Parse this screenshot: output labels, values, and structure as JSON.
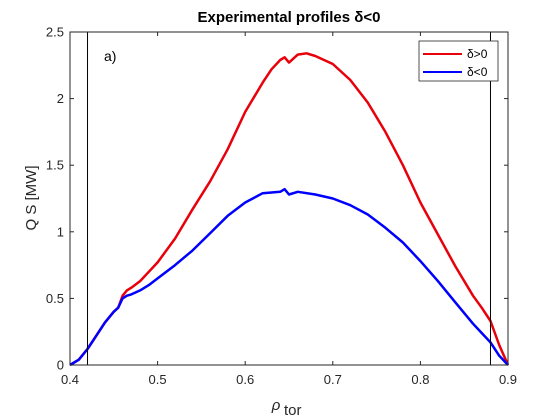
{
  "chart_data": {
    "type": "line",
    "title": "Experimental profiles δ<0",
    "xlabel_main": "ρ",
    "xlabel_sub": "tor",
    "ylabel": "Q S [MW]",
    "xlim": [
      0.4,
      0.9
    ],
    "ylim": [
      0,
      2.5
    ],
    "x_ticks": [
      0.4,
      0.5,
      0.6,
      0.7,
      0.8,
      0.9
    ],
    "x_tick_labels": [
      "0.4",
      "0.5",
      "0.6",
      "0.7",
      "0.8",
      "0.9"
    ],
    "y_ticks": [
      0,
      0.5,
      1,
      1.5,
      2,
      2.5
    ],
    "y_tick_labels": [
      "0",
      "0.5",
      "1",
      "1.5",
      "2",
      "2.5"
    ],
    "annotation": "a)",
    "vertical_lines_x": [
      0.42,
      0.88
    ],
    "grid": false,
    "legend_position": "top-right",
    "series": [
      {
        "name": "δ>0",
        "color": "#e8000b",
        "x": [
          0.4,
          0.41,
          0.42,
          0.43,
          0.44,
          0.45,
          0.455,
          0.46,
          0.465,
          0.47,
          0.48,
          0.49,
          0.5,
          0.52,
          0.54,
          0.56,
          0.58,
          0.6,
          0.62,
          0.63,
          0.64,
          0.645,
          0.65,
          0.66,
          0.67,
          0.68,
          0.7,
          0.72,
          0.74,
          0.76,
          0.78,
          0.8,
          0.82,
          0.84,
          0.86,
          0.87,
          0.88,
          0.89,
          0.9
        ],
        "y": [
          0.0,
          0.04,
          0.12,
          0.22,
          0.32,
          0.4,
          0.43,
          0.52,
          0.56,
          0.58,
          0.63,
          0.7,
          0.77,
          0.95,
          1.17,
          1.38,
          1.62,
          1.9,
          2.12,
          2.22,
          2.29,
          2.31,
          2.27,
          2.33,
          2.34,
          2.32,
          2.26,
          2.14,
          1.97,
          1.75,
          1.5,
          1.22,
          0.98,
          0.74,
          0.52,
          0.43,
          0.33,
          0.15,
          0.0
        ]
      },
      {
        "name": "δ<0",
        "color": "#0000ff",
        "x": [
          0.4,
          0.41,
          0.42,
          0.43,
          0.44,
          0.45,
          0.455,
          0.46,
          0.465,
          0.47,
          0.48,
          0.49,
          0.5,
          0.52,
          0.54,
          0.56,
          0.58,
          0.6,
          0.62,
          0.64,
          0.645,
          0.65,
          0.66,
          0.68,
          0.7,
          0.72,
          0.74,
          0.76,
          0.78,
          0.8,
          0.82,
          0.84,
          0.86,
          0.87,
          0.88,
          0.89,
          0.9
        ],
        "y": [
          0.0,
          0.04,
          0.12,
          0.22,
          0.32,
          0.4,
          0.43,
          0.5,
          0.52,
          0.53,
          0.56,
          0.6,
          0.65,
          0.75,
          0.86,
          0.99,
          1.12,
          1.22,
          1.29,
          1.3,
          1.32,
          1.28,
          1.3,
          1.28,
          1.25,
          1.2,
          1.13,
          1.03,
          0.92,
          0.78,
          0.63,
          0.47,
          0.31,
          0.24,
          0.17,
          0.07,
          0.0
        ]
      }
    ]
  }
}
